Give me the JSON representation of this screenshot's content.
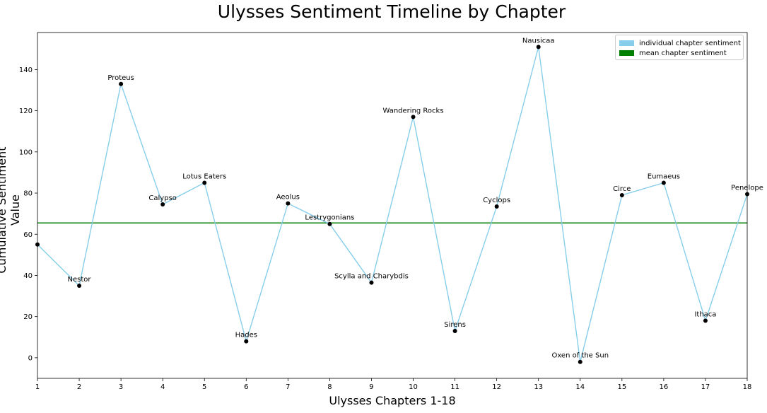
{
  "chart_data": {
    "type": "line",
    "title": "Ulysses Sentiment Timeline by Chapter",
    "xlabel": "Ulysses Chapters 1-18",
    "ylabel": "Cumulative Sentiment Value",
    "xlim": [
      1,
      18
    ],
    "ylim": [
      -10,
      158
    ],
    "x_ticks": [
      1,
      2,
      3,
      4,
      5,
      6,
      7,
      8,
      9,
      10,
      11,
      12,
      13,
      14,
      15,
      16,
      17,
      18
    ],
    "y_ticks": [
      0,
      20,
      40,
      60,
      80,
      100,
      120,
      140
    ],
    "grid": false,
    "legend_position": "top-right",
    "colors": {
      "line": "#87ceeb",
      "mean": "#008000",
      "points": "#000000"
    },
    "series": [
      {
        "name": "individual chapter sentiment",
        "x": [
          1,
          2,
          3,
          4,
          5,
          6,
          7,
          8,
          9,
          10,
          11,
          12,
          13,
          14,
          15,
          16,
          17,
          18
        ],
        "values": [
          55,
          35,
          133,
          74.5,
          85,
          8,
          75,
          65,
          36.5,
          117,
          13,
          73.5,
          151,
          -2,
          79,
          85,
          18,
          79.5
        ],
        "labels": [
          "",
          "Nestor",
          "Proteus",
          "Calypso",
          "Lotus Eaters",
          "Hades",
          "Aeolus",
          "Lestrygonians",
          "Scylla and Charybdis",
          "Wandering Rocks",
          "Sirens",
          "Cyclops",
          "Nausicaa",
          "Oxen of the Sun",
          "Circe",
          "Eumaeus",
          "Ithaca",
          "Penelope"
        ]
      },
      {
        "name": "mean chapter sentiment",
        "value": 65.5
      }
    ]
  }
}
